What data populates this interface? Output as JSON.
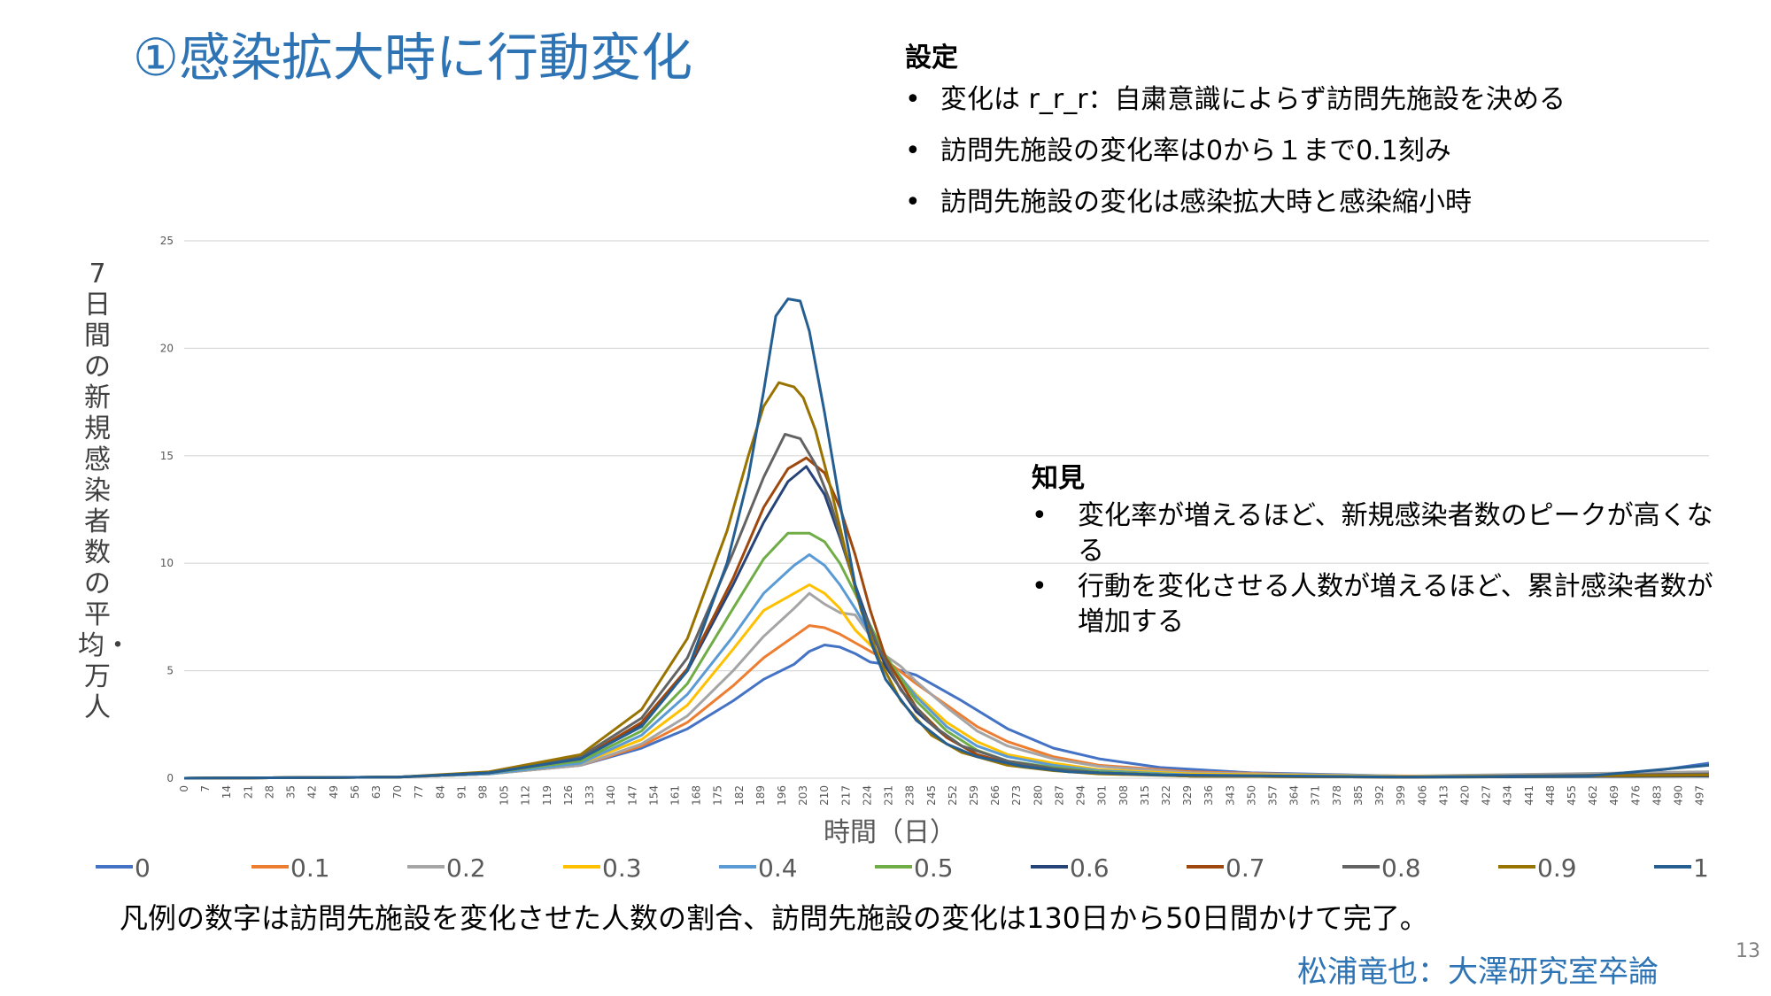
{
  "title": "①感染拡大時に行動変化",
  "settings": {
    "heading": "設定",
    "items": [
      "変化は r_r_r：自粛意識によらず訪問先施設を決める",
      "訪問先施設の変化率は0から１まで0.1刻み",
      "訪問先施設の変化は感染拡大時と感染縮小時"
    ]
  },
  "findings": {
    "heading": "知見",
    "items": [
      "変化率が増えるほど、新規感染者数のピークが高くなる",
      "行動を変化させる人数が増えるほど、累計感染者数が増加する"
    ]
  },
  "caption": "凡例の数字は訪問先施設を変化させた人数の割合、訪問先施設の変化は130日から50日間かけて完了。",
  "credit": "松浦竜也：大澤研究室卒論",
  "page_number": "13",
  "chart_data": {
    "type": "line",
    "xlabel": "時間（日）",
    "ylabel": "7日間の新規感染者数の平均・万人",
    "ylim": [
      0,
      25
    ],
    "yticks": [
      0,
      5,
      10,
      15,
      20,
      25
    ],
    "xlim": [
      0,
      500
    ],
    "xticks": [
      0,
      7,
      14,
      21,
      28,
      35,
      42,
      49,
      56,
      63,
      70,
      77,
      84,
      91,
      98,
      105,
      112,
      119,
      126,
      133,
      140,
      147,
      154,
      161,
      168,
      175,
      182,
      189,
      196,
      203,
      210,
      217,
      224,
      231,
      238,
      245,
      252,
      259,
      266,
      273,
      280,
      287,
      294,
      301,
      308,
      315,
      322,
      329,
      336,
      343,
      350,
      357,
      364,
      371,
      378,
      385,
      392,
      399,
      406,
      413,
      420,
      427,
      434,
      441,
      448,
      455,
      462,
      469,
      476,
      483,
      490,
      497
    ],
    "grid": "horizontal",
    "legend_position": "bottom",
    "series": [
      {
        "name": "0",
        "color": "#4472c4",
        "points": [
          [
            0,
            0
          ],
          [
            70,
            0.05
          ],
          [
            100,
            0.2
          ],
          [
            130,
            0.6
          ],
          [
            150,
            1.4
          ],
          [
            165,
            2.3
          ],
          [
            180,
            3.6
          ],
          [
            190,
            4.6
          ],
          [
            200,
            5.3
          ],
          [
            205,
            5.9
          ],
          [
            210,
            6.2
          ],
          [
            215,
            6.1
          ],
          [
            220,
            5.8
          ],
          [
            225,
            5.4
          ],
          [
            230,
            5.3
          ],
          [
            235,
            5.0
          ],
          [
            240,
            4.8
          ],
          [
            245,
            4.4
          ],
          [
            255,
            3.6
          ],
          [
            270,
            2.3
          ],
          [
            285,
            1.4
          ],
          [
            300,
            0.9
          ],
          [
            320,
            0.5
          ],
          [
            350,
            0.25
          ],
          [
            400,
            0.1
          ],
          [
            450,
            0.1
          ],
          [
            480,
            0.3
          ],
          [
            500,
            0.7
          ]
        ]
      },
      {
        "name": "0.1",
        "color": "#ed7d31",
        "points": [
          [
            0,
            0
          ],
          [
            70,
            0.05
          ],
          [
            100,
            0.2
          ],
          [
            130,
            0.6
          ],
          [
            150,
            1.5
          ],
          [
            165,
            2.6
          ],
          [
            180,
            4.3
          ],
          [
            190,
            5.6
          ],
          [
            200,
            6.6
          ],
          [
            205,
            7.1
          ],
          [
            210,
            7.0
          ],
          [
            215,
            6.7
          ],
          [
            220,
            6.3
          ],
          [
            225,
            5.9
          ],
          [
            230,
            5.5
          ],
          [
            240,
            4.4
          ],
          [
            250,
            3.4
          ],
          [
            260,
            2.4
          ],
          [
            270,
            1.7
          ],
          [
            285,
            1.0
          ],
          [
            300,
            0.6
          ],
          [
            330,
            0.3
          ],
          [
            380,
            0.12
          ],
          [
            450,
            0.08
          ],
          [
            500,
            0.2
          ]
        ]
      },
      {
        "name": "0.2",
        "color": "#a5a5a5",
        "points": [
          [
            0,
            0
          ],
          [
            70,
            0.05
          ],
          [
            100,
            0.2
          ],
          [
            130,
            0.6
          ],
          [
            150,
            1.6
          ],
          [
            165,
            2.9
          ],
          [
            180,
            5.0
          ],
          [
            190,
            6.6
          ],
          [
            200,
            7.9
          ],
          [
            205,
            8.6
          ],
          [
            210,
            8.1
          ],
          [
            215,
            7.7
          ],
          [
            220,
            7.6
          ],
          [
            225,
            6.6
          ],
          [
            230,
            5.7
          ],
          [
            235,
            5.2
          ],
          [
            240,
            4.5
          ],
          [
            250,
            3.3
          ],
          [
            260,
            2.2
          ],
          [
            270,
            1.5
          ],
          [
            285,
            0.9
          ],
          [
            300,
            0.55
          ],
          [
            330,
            0.25
          ],
          [
            400,
            0.1
          ],
          [
            500,
            0.3
          ]
        ]
      },
      {
        "name": "0.3",
        "color": "#ffc000",
        "points": [
          [
            0,
            0
          ],
          [
            70,
            0.05
          ],
          [
            100,
            0.2
          ],
          [
            130,
            0.7
          ],
          [
            150,
            1.8
          ],
          [
            165,
            3.4
          ],
          [
            180,
            6.0
          ],
          [
            190,
            7.8
          ],
          [
            200,
            8.6
          ],
          [
            205,
            9.0
          ],
          [
            210,
            8.6
          ],
          [
            215,
            7.9
          ],
          [
            220,
            6.9
          ],
          [
            225,
            6.2
          ],
          [
            230,
            5.4
          ],
          [
            240,
            3.9
          ],
          [
            250,
            2.6
          ],
          [
            260,
            1.7
          ],
          [
            270,
            1.1
          ],
          [
            285,
            0.7
          ],
          [
            300,
            0.4
          ],
          [
            330,
            0.2
          ],
          [
            400,
            0.08
          ],
          [
            500,
            0.15
          ]
        ]
      },
      {
        "name": "0.4",
        "color": "#5b9bd5",
        "points": [
          [
            0,
            0
          ],
          [
            70,
            0.05
          ],
          [
            100,
            0.2
          ],
          [
            130,
            0.7
          ],
          [
            150,
            2.0
          ],
          [
            165,
            3.9
          ],
          [
            180,
            6.6
          ],
          [
            190,
            8.6
          ],
          [
            200,
            9.9
          ],
          [
            205,
            10.4
          ],
          [
            210,
            9.9
          ],
          [
            215,
            9.0
          ],
          [
            220,
            7.9
          ],
          [
            225,
            6.7
          ],
          [
            230,
            5.6
          ],
          [
            240,
            3.8
          ],
          [
            250,
            2.4
          ],
          [
            260,
            1.5
          ],
          [
            270,
            1.0
          ],
          [
            285,
            0.6
          ],
          [
            300,
            0.35
          ],
          [
            330,
            0.15
          ],
          [
            400,
            0.06
          ],
          [
            500,
            0.12
          ]
        ]
      },
      {
        "name": "0.5",
        "color": "#70ad47",
        "points": [
          [
            0,
            0
          ],
          [
            70,
            0.05
          ],
          [
            100,
            0.25
          ],
          [
            130,
            0.8
          ],
          [
            150,
            2.2
          ],
          [
            165,
            4.4
          ],
          [
            180,
            7.9
          ],
          [
            190,
            10.2
          ],
          [
            198,
            11.4
          ],
          [
            205,
            11.4
          ],
          [
            210,
            11.0
          ],
          [
            215,
            10.0
          ],
          [
            220,
            8.6
          ],
          [
            225,
            7.1
          ],
          [
            230,
            5.7
          ],
          [
            240,
            3.6
          ],
          [
            250,
            2.2
          ],
          [
            260,
            1.3
          ],
          [
            270,
            0.8
          ],
          [
            285,
            0.5
          ],
          [
            300,
            0.3
          ],
          [
            330,
            0.12
          ],
          [
            400,
            0.05
          ],
          [
            500,
            0.1
          ]
        ]
      },
      {
        "name": "0.6",
        "color": "#264478",
        "points": [
          [
            0,
            0
          ],
          [
            70,
            0.05
          ],
          [
            100,
            0.25
          ],
          [
            130,
            0.9
          ],
          [
            150,
            2.5
          ],
          [
            165,
            5.0
          ],
          [
            180,
            9.0
          ],
          [
            190,
            11.9
          ],
          [
            198,
            13.8
          ],
          [
            204,
            14.5
          ],
          [
            210,
            13.2
          ],
          [
            215,
            11.2
          ],
          [
            220,
            9.0
          ],
          [
            225,
            7.0
          ],
          [
            230,
            5.2
          ],
          [
            240,
            3.1
          ],
          [
            250,
            1.9
          ],
          [
            260,
            1.1
          ],
          [
            270,
            0.7
          ],
          [
            285,
            0.4
          ],
          [
            300,
            0.25
          ],
          [
            330,
            0.1
          ],
          [
            400,
            0.05
          ],
          [
            500,
            0.1
          ]
        ]
      },
      {
        "name": "0.7",
        "color": "#9e480e",
        "points": [
          [
            0,
            0
          ],
          [
            70,
            0.05
          ],
          [
            100,
            0.25
          ],
          [
            130,
            0.9
          ],
          [
            150,
            2.6
          ],
          [
            165,
            5.1
          ],
          [
            180,
            9.3
          ],
          [
            190,
            12.6
          ],
          [
            198,
            14.4
          ],
          [
            204,
            14.9
          ],
          [
            210,
            14.2
          ],
          [
            215,
            12.6
          ],
          [
            220,
            10.4
          ],
          [
            225,
            7.8
          ],
          [
            230,
            5.6
          ],
          [
            240,
            3.3
          ],
          [
            250,
            1.9
          ],
          [
            260,
            1.1
          ],
          [
            270,
            0.7
          ],
          [
            285,
            0.4
          ],
          [
            300,
            0.25
          ],
          [
            330,
            0.1
          ],
          [
            400,
            0.05
          ],
          [
            500,
            0.15
          ]
        ]
      },
      {
        "name": "0.8",
        "color": "#636363",
        "points": [
          [
            0,
            0
          ],
          [
            70,
            0.05
          ],
          [
            100,
            0.25
          ],
          [
            130,
            1.0
          ],
          [
            150,
            2.8
          ],
          [
            165,
            5.6
          ],
          [
            180,
            10.5
          ],
          [
            190,
            14.0
          ],
          [
            197,
            16.0
          ],
          [
            202,
            15.8
          ],
          [
            207,
            14.6
          ],
          [
            212,
            12.8
          ],
          [
            217,
            10.4
          ],
          [
            222,
            8.0
          ],
          [
            228,
            6.0
          ],
          [
            235,
            4.1
          ],
          [
            245,
            2.5
          ],
          [
            255,
            1.5
          ],
          [
            270,
            0.8
          ],
          [
            285,
            0.45
          ],
          [
            300,
            0.25
          ],
          [
            330,
            0.1
          ],
          [
            400,
            0.05
          ],
          [
            500,
            0.2
          ]
        ]
      },
      {
        "name": "0.9",
        "color": "#997300",
        "points": [
          [
            0,
            0
          ],
          [
            70,
            0.05
          ],
          [
            100,
            0.3
          ],
          [
            130,
            1.1
          ],
          [
            150,
            3.2
          ],
          [
            165,
            6.5
          ],
          [
            178,
            11.5
          ],
          [
            185,
            15.0
          ],
          [
            190,
            17.3
          ],
          [
            195,
            18.4
          ],
          [
            200,
            18.2
          ],
          [
            203,
            17.7
          ],
          [
            207,
            16.2
          ],
          [
            212,
            13.5
          ],
          [
            217,
            10.5
          ],
          [
            222,
            7.8
          ],
          [
            228,
            5.5
          ],
          [
            235,
            3.6
          ],
          [
            245,
            2.0
          ],
          [
            255,
            1.2
          ],
          [
            270,
            0.6
          ],
          [
            285,
            0.35
          ],
          [
            300,
            0.2
          ],
          [
            330,
            0.1
          ],
          [
            400,
            0.05
          ],
          [
            500,
            0.15
          ]
        ]
      },
      {
        "name": "1",
        "color": "#255e91",
        "points": [
          [
            0,
            0
          ],
          [
            70,
            0.05
          ],
          [
            100,
            0.25
          ],
          [
            130,
            0.9
          ],
          [
            150,
            2.4
          ],
          [
            165,
            5.0
          ],
          [
            178,
            10.0
          ],
          [
            185,
            14.0
          ],
          [
            190,
            18.0
          ],
          [
            194,
            21.5
          ],
          [
            198,
            22.3
          ],
          [
            202,
            22.2
          ],
          [
            205,
            20.8
          ],
          [
            210,
            17.0
          ],
          [
            215,
            12.8
          ],
          [
            220,
            9.0
          ],
          [
            225,
            6.4
          ],
          [
            230,
            4.6
          ],
          [
            240,
            2.7
          ],
          [
            250,
            1.6
          ],
          [
            260,
            1.0
          ],
          [
            275,
            0.55
          ],
          [
            290,
            0.3
          ],
          [
            320,
            0.15
          ],
          [
            400,
            0.05
          ],
          [
            460,
            0.1
          ],
          [
            500,
            0.6
          ]
        ]
      }
    ]
  }
}
